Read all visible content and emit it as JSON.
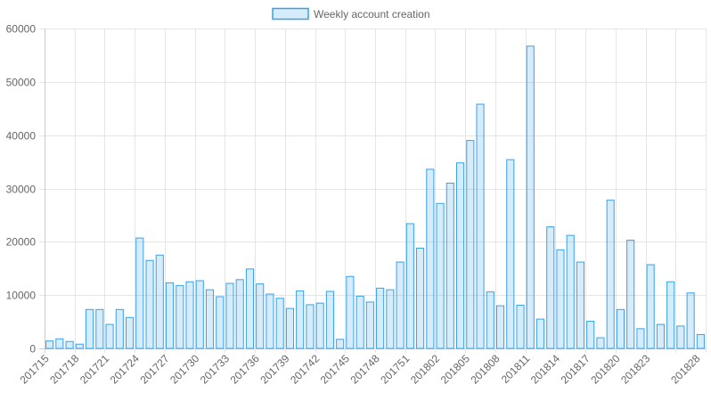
{
  "colors": {
    "bar_fill": "rgba(54,162,235,0.2)",
    "bar_stroke": "#36a2eb",
    "grid": "#e5e5e5",
    "axis_text": "#666666"
  },
  "chart_data": {
    "type": "bar",
    "legend": {
      "label": "Weekly account creation",
      "placement": "top"
    },
    "grid": true,
    "ylim": [
      0,
      60000
    ],
    "yticks": [
      0,
      10000,
      20000,
      30000,
      40000,
      50000,
      60000
    ],
    "categories": [
      "201715",
      "201716",
      "201717",
      "201718",
      "201719",
      "201720",
      "201721",
      "201722",
      "201723",
      "201724",
      "201725",
      "201726",
      "201727",
      "201728",
      "201729",
      "201730",
      "201731",
      "201732",
      "201733",
      "201734",
      "201735",
      "201736",
      "201737",
      "201738",
      "201739",
      "201740",
      "201741",
      "201742",
      "201743",
      "201744",
      "201745",
      "201746",
      "201747",
      "201748",
      "201749",
      "201750",
      "201751",
      "201752",
      "201801",
      "201802",
      "201803",
      "201804",
      "201805",
      "201806",
      "201807",
      "201808",
      "201809",
      "201810",
      "201811",
      "201812",
      "201813",
      "201814",
      "201815",
      "201816",
      "201817",
      "201818",
      "201819",
      "201820",
      "201821",
      "201822",
      "201823",
      "201824",
      "201825",
      "201826",
      "201827",
      "201828"
    ],
    "shown_tick_labels": [
      "201715",
      "201718",
      "201721",
      "201724",
      "201727",
      "201730",
      "201733",
      "201736",
      "201739",
      "201742",
      "201745",
      "201748",
      "201751",
      "201802",
      "201805",
      "201808",
      "201811",
      "201814",
      "201817",
      "201820",
      "201823",
      "201828"
    ],
    "series": [
      {
        "name": "Weekly account creation",
        "values": [
          1400,
          1800,
          1300,
          800,
          7300,
          7300,
          4500,
          7300,
          5800,
          20700,
          16500,
          17500,
          12300,
          11800,
          12500,
          12700,
          11000,
          9700,
          12200,
          12900,
          14900,
          12100,
          10200,
          9400,
          7500,
          10800,
          8200,
          8500,
          10700,
          1700,
          13500,
          9800,
          8700,
          11300,
          11000,
          16200,
          23400,
          18800,
          33600,
          27200,
          31000,
          34800,
          39000,
          45800,
          10600,
          8000,
          35400,
          8100,
          56700,
          5500,
          22800,
          18500,
          21200,
          16200,
          5100,
          2000,
          27800,
          7300,
          20300,
          3700,
          15700,
          4500,
          12500,
          4200,
          10400,
          2600
        ]
      }
    ]
  }
}
